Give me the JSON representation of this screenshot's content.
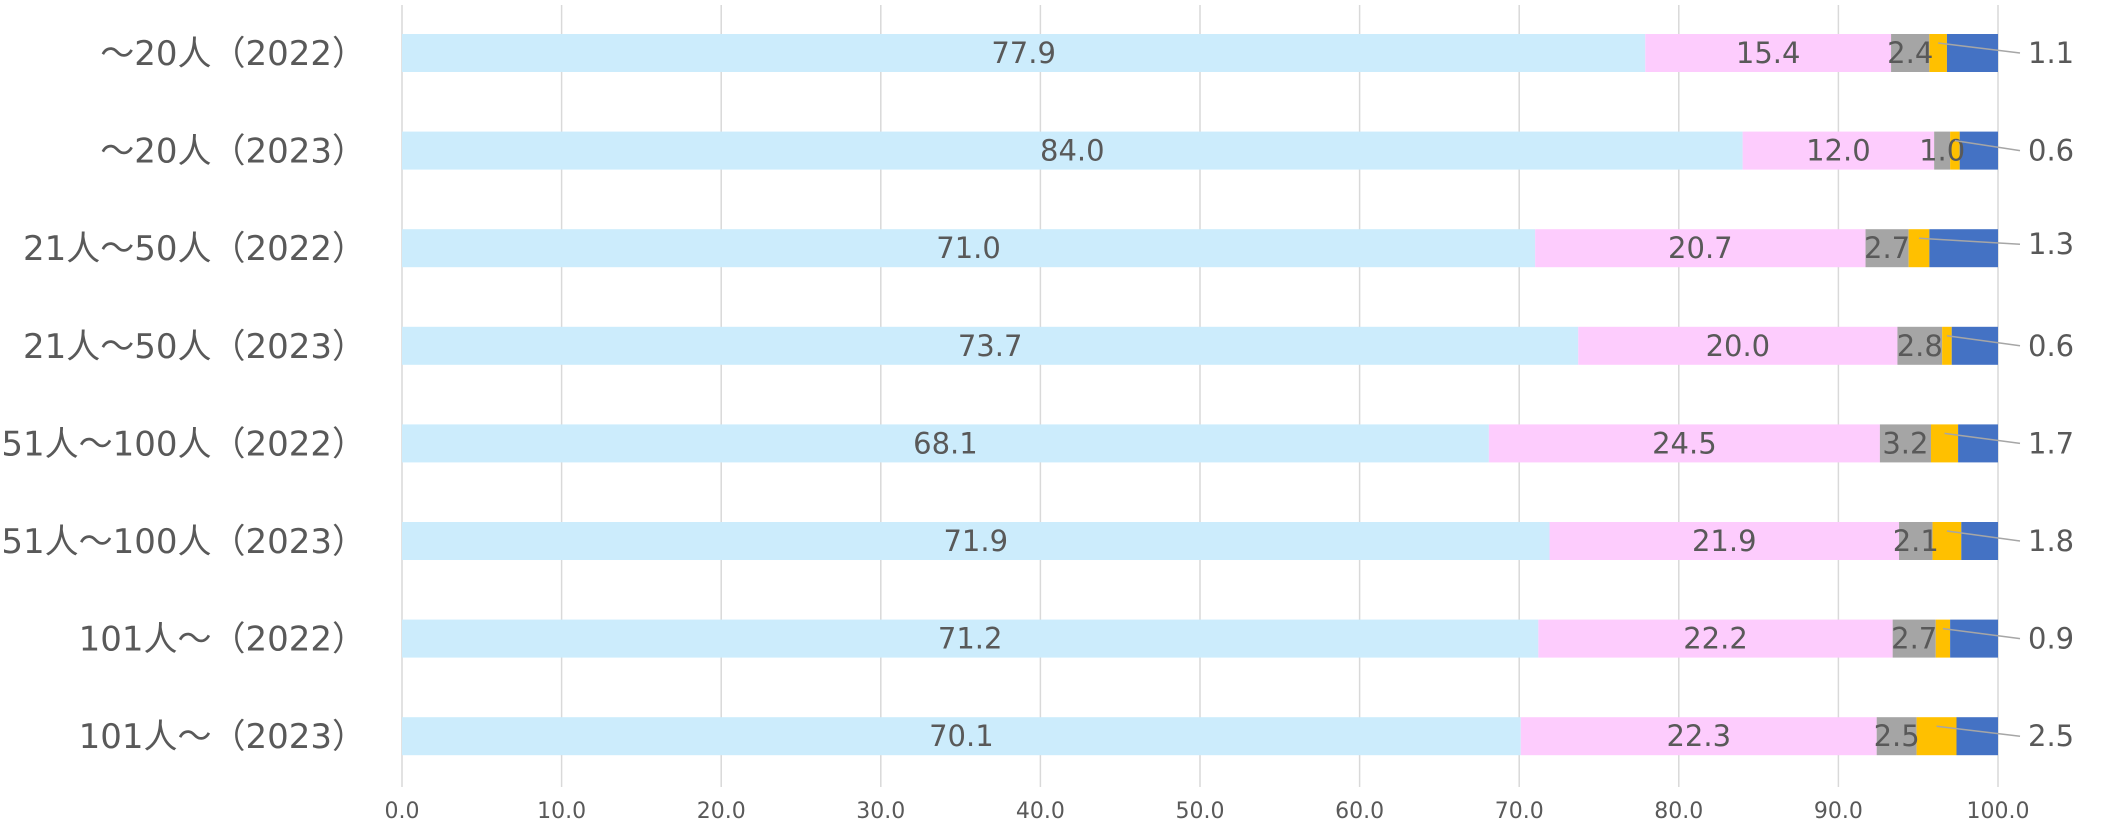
{
  "chart_data": {
    "type": "bar",
    "orientation": "horizontal",
    "stacked": true,
    "title": "",
    "xlabel": "",
    "ylabel": "",
    "xlim": [
      0,
      100
    ],
    "x_ticks": [
      "0.0",
      "10.0",
      "20.0",
      "30.0",
      "40.0",
      "50.0",
      "60.0",
      "70.0",
      "80.0",
      "90.0",
      "100.0"
    ],
    "grid": "vertical",
    "legend": "none",
    "categories": [
      "～20人（2022）",
      "～20人（2023）",
      "21人～50人（2022）",
      "21人～50人（2023）",
      "51人～100人（2022）",
      "51人～100人（2023）",
      "101人～（2022）",
      "101人～（2023）"
    ],
    "series": [
      {
        "color": "#CCECFC",
        "values": [
          77.9,
          84.0,
          71.0,
          73.7,
          68.1,
          71.9,
          71.2,
          70.1
        ]
      },
      {
        "color": "#FDCCFD",
        "values": [
          15.4,
          12.0,
          20.7,
          20.0,
          24.5,
          21.9,
          22.2,
          22.3
        ]
      },
      {
        "color": "#A5A5A5",
        "values": [
          2.4,
          1.0,
          2.7,
          2.8,
          3.2,
          2.1,
          2.7,
          2.5
        ]
      },
      {
        "color": "#FFC000",
        "values": [
          1.1,
          0.6,
          1.3,
          0.6,
          1.7,
          1.8,
          0.9,
          2.5
        ]
      },
      {
        "color": "#4472C4",
        "values": [
          3.2,
          2.4,
          4.3,
          2.9,
          2.5,
          2.3,
          3.0,
          2.6
        ]
      }
    ],
    "data_labels": [
      [
        "77.9",
        "15.4",
        "2.4",
        "1.1"
      ],
      [
        "84.0",
        "12.0",
        "1.0",
        "0.6"
      ],
      [
        "71.0",
        "20.7",
        "2.7",
        "1.3"
      ],
      [
        "73.7",
        "20.0",
        "2.8",
        "0.6"
      ],
      [
        "68.1",
        "24.5",
        "3.2",
        "1.7"
      ],
      [
        "71.9",
        "21.9",
        "2.1",
        "1.8"
      ],
      [
        "71.2",
        "22.2",
        "2.7",
        "0.9"
      ],
      [
        "70.1",
        "22.3",
        "2.5",
        "2.5"
      ]
    ],
    "colors": {
      "grid": "#D9D9D9",
      "text": "#595959",
      "leader_line": "#A6A6A6"
    }
  }
}
